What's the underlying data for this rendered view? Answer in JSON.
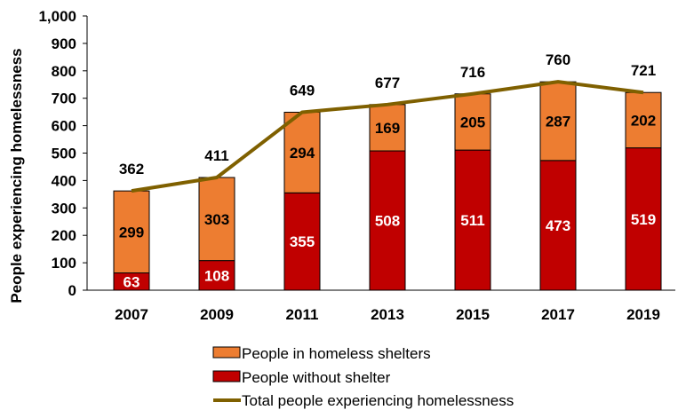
{
  "chart_data": {
    "type": "bar",
    "stacked": true,
    "categories": [
      "2007",
      "2009",
      "2011",
      "2013",
      "2015",
      "2017",
      "2019"
    ],
    "series": [
      {
        "name": "People without shelter",
        "type": "bar",
        "color": "#c00000",
        "label_color": "#ffffff",
        "values": [
          63,
          108,
          355,
          508,
          511,
          473,
          519
        ]
      },
      {
        "name": "People in homeless shelters",
        "type": "bar",
        "color": "#ed7d31",
        "label_color": "#000000",
        "values": [
          299,
          303,
          294,
          169,
          205,
          287,
          202
        ]
      },
      {
        "name": "Total people experiencing homelessness",
        "type": "line",
        "color": "#7f6000",
        "values": [
          362,
          411,
          649,
          677,
          716,
          760,
          721
        ]
      }
    ],
    "ylabel": "People experiencing homelessness",
    "xlabel": "",
    "ylim": [
      0,
      1000
    ],
    "yticks": [
      "0",
      "100",
      "200",
      "300",
      "400",
      "500",
      "600",
      "700",
      "800",
      "900",
      "1,000"
    ],
    "legend": {
      "position": "bottom",
      "entries": [
        "People in homeless shelters",
        "People without shelter",
        "Total people experiencing homelessness"
      ]
    },
    "grid": false
  }
}
